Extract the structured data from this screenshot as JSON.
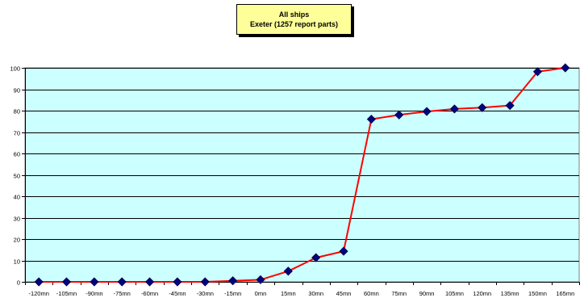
{
  "chart_data": {
    "type": "line",
    "title": "All ships",
    "subtitle": "Exeter (1257 report parts)",
    "categories": [
      "-120mn",
      "-105mn",
      "-90mn",
      "-75mn",
      "-60mn",
      "-45mn",
      "-30mn",
      "-15mn",
      "0mn",
      "15mn",
      "30mn",
      "45mn",
      "60mn",
      "75mn",
      "90mn",
      "105mn",
      "120mn",
      "135mn",
      "150mn",
      "165mn"
    ],
    "series": [
      {
        "values": [
          0,
          0,
          0,
          0,
          0,
          0,
          0,
          0.5,
          1,
          5,
          11.3,
          14.3,
          76,
          78,
          79.6,
          80.8,
          81.4,
          82.4,
          98.2,
          100
        ]
      }
    ],
    "ylim": [
      0,
      100
    ],
    "yticks": [
      0,
      10,
      20,
      30,
      40,
      50,
      60,
      70,
      80,
      90,
      100
    ],
    "grid": true,
    "xlabel": "",
    "ylabel": "",
    "colors": {
      "plot_background": "#ccffff",
      "line": "#ff0000",
      "marker": "#000080",
      "title_box": "#ffff99"
    }
  }
}
